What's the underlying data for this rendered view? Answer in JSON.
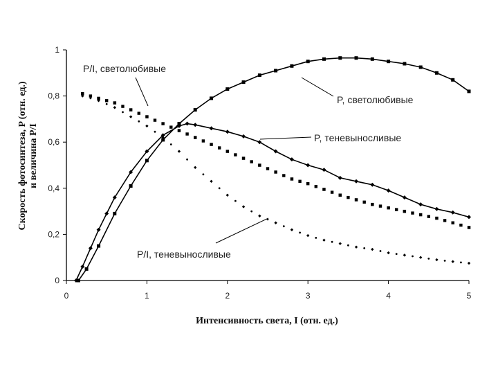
{
  "chart_data": {
    "type": "line",
    "title": "",
    "xlabel": "Интенсивность света, I (отн. ед.)",
    "ylabel_line1": "Скорость фотосинтеза, P (отн. ед.)",
    "ylabel_line2": "и величина P/I",
    "xlim": [
      0,
      5
    ],
    "ylim": [
      0,
      1
    ],
    "x_ticks": [
      "0",
      "1",
      "2",
      "3",
      "4",
      "5"
    ],
    "y_ticks": [
      "0",
      "0,2",
      "0,4",
      "0,6",
      "0,8",
      "1"
    ],
    "grid": false,
    "series": [
      {
        "name": "P, светолюбивые",
        "style": "solid-square",
        "x": [
          0.15,
          0.25,
          0.4,
          0.6,
          0.8,
          1.0,
          1.2,
          1.4,
          1.6,
          1.8,
          2.0,
          2.2,
          2.4,
          2.6,
          2.8,
          3.0,
          3.2,
          3.4,
          3.6,
          3.8,
          4.0,
          4.2,
          4.4,
          4.6,
          4.8,
          5.0
        ],
        "values": [
          0.0,
          0.05,
          0.15,
          0.29,
          0.41,
          0.52,
          0.61,
          0.68,
          0.74,
          0.79,
          0.83,
          0.86,
          0.89,
          0.91,
          0.93,
          0.95,
          0.96,
          0.965,
          0.965,
          0.96,
          0.95,
          0.94,
          0.925,
          0.9,
          0.87,
          0.82
        ]
      },
      {
        "name": "P, теневыносливые",
        "style": "solid-diamond",
        "x": [
          0.12,
          0.2,
          0.3,
          0.4,
          0.5,
          0.6,
          0.8,
          1.0,
          1.2,
          1.4,
          1.5,
          1.6,
          1.8,
          2.0,
          2.2,
          2.4,
          2.6,
          2.8,
          3.0,
          3.2,
          3.4,
          3.6,
          3.8,
          4.0,
          4.2,
          4.4,
          4.6,
          4.8,
          5.0
        ],
        "values": [
          0.0,
          0.06,
          0.14,
          0.22,
          0.29,
          0.36,
          0.47,
          0.56,
          0.63,
          0.67,
          0.68,
          0.675,
          0.66,
          0.645,
          0.625,
          0.6,
          0.56,
          0.525,
          0.5,
          0.48,
          0.445,
          0.43,
          0.415,
          0.39,
          0.36,
          0.33,
          0.31,
          0.295,
          0.275
        ]
      },
      {
        "name": "P/I, светолюбивые",
        "style": "dotted-square",
        "x": [
          0.2,
          0.4,
          0.6,
          0.8,
          1.0,
          1.2,
          1.4,
          1.6,
          1.8,
          2.0,
          2.2,
          2.4,
          2.6,
          2.8,
          3.0,
          3.2,
          3.4,
          3.6,
          3.8,
          4.0,
          4.2,
          4.4,
          4.6,
          4.8,
          5.0
        ],
        "values": [
          0.81,
          0.79,
          0.77,
          0.74,
          0.71,
          0.68,
          0.65,
          0.62,
          0.59,
          0.56,
          0.53,
          0.5,
          0.47,
          0.44,
          0.42,
          0.395,
          0.37,
          0.35,
          0.33,
          0.315,
          0.3,
          0.285,
          0.27,
          0.25,
          0.23
        ]
      },
      {
        "name": "P/I, теневыносливые",
        "style": "dotted-diamond",
        "x": [
          0.2,
          0.4,
          0.6,
          0.8,
          1.0,
          1.2,
          1.4,
          1.6,
          1.8,
          2.0,
          2.2,
          2.4,
          2.6,
          2.8,
          3.0,
          3.2,
          3.4,
          3.6,
          3.8,
          4.0,
          4.2,
          4.4,
          4.6,
          4.8,
          5.0
        ],
        "values": [
          0.8,
          0.78,
          0.75,
          0.71,
          0.67,
          0.62,
          0.56,
          0.49,
          0.43,
          0.37,
          0.32,
          0.28,
          0.25,
          0.22,
          0.195,
          0.175,
          0.16,
          0.145,
          0.135,
          0.12,
          0.11,
          0.1,
          0.09,
          0.082,
          0.075
        ]
      }
    ],
    "annotations": [
      {
        "text": "P/I, светолюбивые",
        "series": 2
      },
      {
        "text": "P, светолюбивые",
        "series": 0
      },
      {
        "text": "P, теневыносливые",
        "series": 1
      },
      {
        "text": "P/I, теневыносливые",
        "series": 3
      }
    ]
  }
}
